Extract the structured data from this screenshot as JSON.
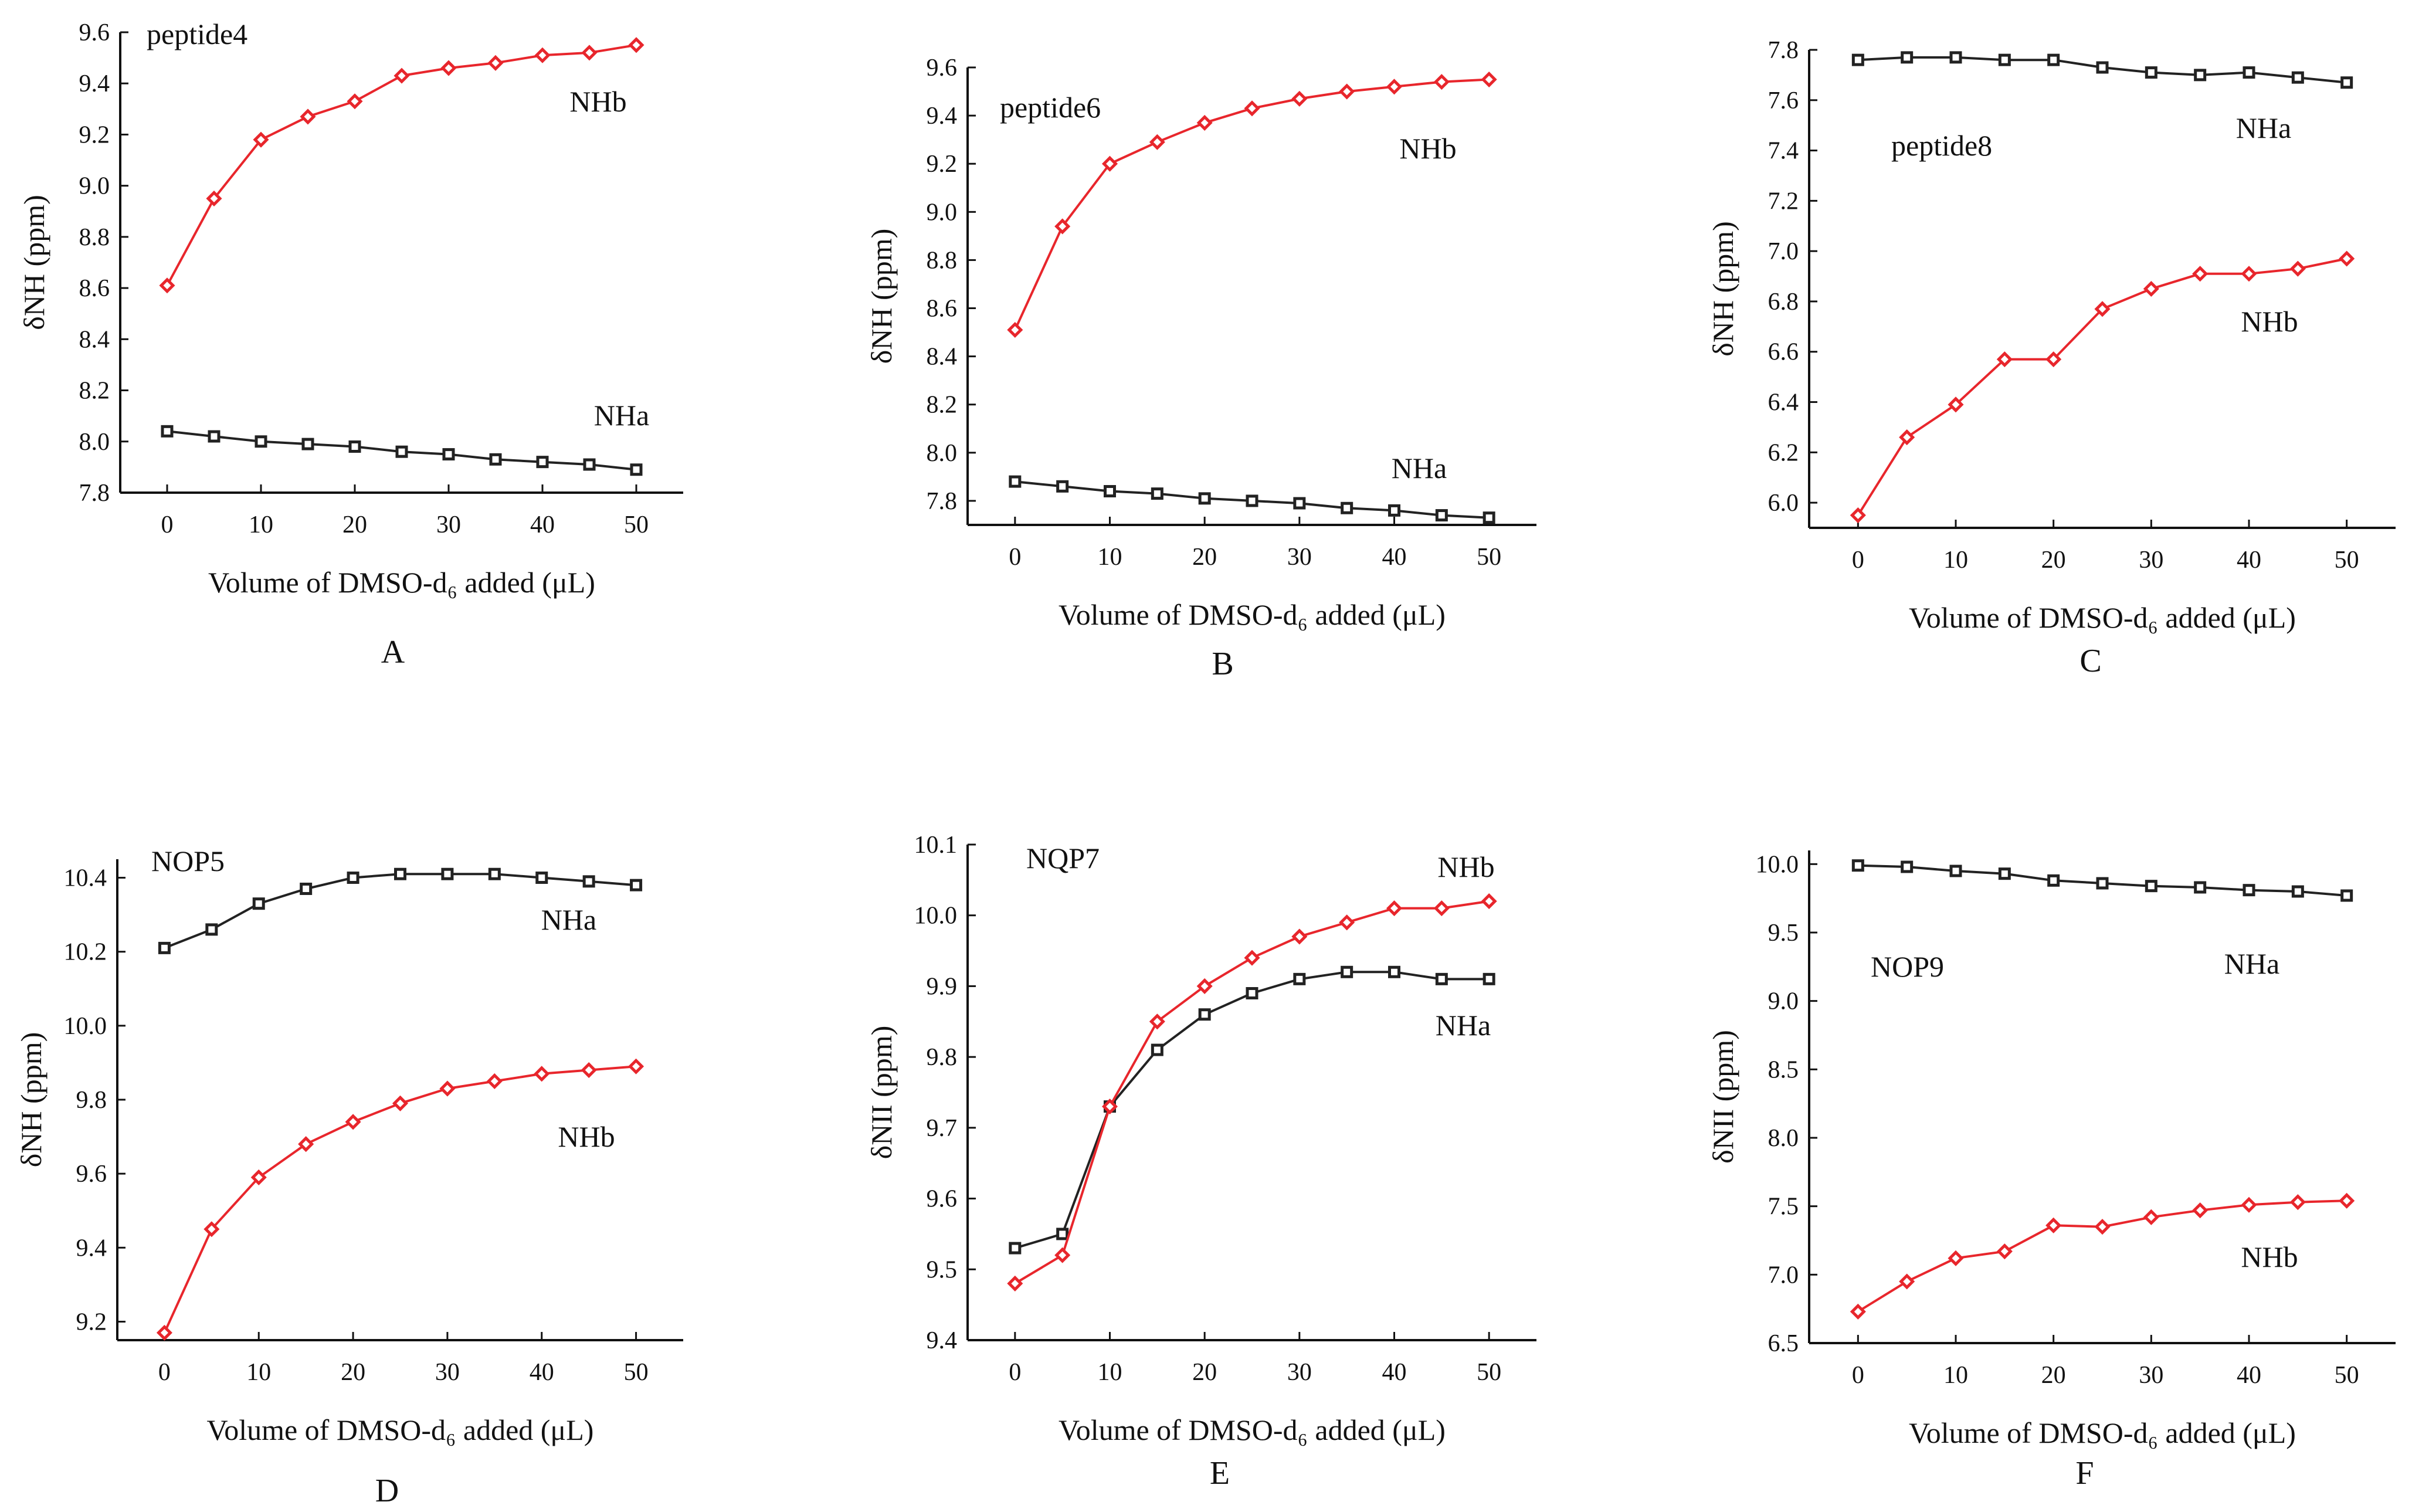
{
  "figure": {
    "colors": {
      "nha": "#222222",
      "nhb": "#e8262c",
      "axis": "#111111"
    },
    "icons": {
      "nha_marker": "square-marker-icon",
      "nhb_marker": "diamond-marker-icon"
    }
  },
  "chart_data": [
    {
      "panel": "A",
      "type": "line",
      "title": "peptide4",
      "xlabel": "Volume of DMSO-d₆ added (μL)",
      "ylabel": "δNH (ppm)",
      "xlim": [
        -5,
        55
      ],
      "ylim": [
        7.8,
        9.6
      ],
      "xticks": [
        "0",
        "10",
        "20",
        "30",
        "40",
        "50"
      ],
      "yticks": [
        "7.8",
        "8.0",
        "8.2",
        "8.4",
        "8.6",
        "8.8",
        "9.0",
        "9.2",
        "9.4",
        "9.6"
      ],
      "x": [
        0,
        5,
        10,
        15,
        20,
        25,
        30,
        35,
        40,
        45,
        50
      ],
      "series": [
        {
          "name": "NHa",
          "marker": "square",
          "values": [
            8.04,
            8.02,
            8.0,
            7.99,
            7.98,
            7.96,
            7.95,
            7.93,
            7.92,
            7.91,
            7.89
          ]
        },
        {
          "name": "NHb",
          "marker": "diamond",
          "values": [
            8.61,
            8.95,
            9.18,
            9.27,
            9.33,
            9.43,
            9.46,
            9.48,
            9.51,
            9.52,
            9.55
          ]
        }
      ]
    },
    {
      "panel": "B",
      "type": "line",
      "title": "peptide6",
      "xlabel": "Volume of DMSO-d₆ added (μL)",
      "ylabel": "δNH (ppm)",
      "xlim": [
        -5,
        55
      ],
      "ylim": [
        7.7,
        9.6
      ],
      "xticks": [
        "0",
        "10",
        "20",
        "30",
        "40",
        "50"
      ],
      "yticks": [
        "7.8",
        "8.0",
        "8.2",
        "8.4",
        "8.6",
        "8.8",
        "9.0",
        "9.2",
        "9.4",
        "9.6"
      ],
      "x": [
        0,
        5,
        10,
        15,
        20,
        25,
        30,
        35,
        40,
        45,
        50
      ],
      "series": [
        {
          "name": "NHa",
          "marker": "square",
          "values": [
            7.88,
            7.86,
            7.84,
            7.83,
            7.81,
            7.8,
            7.79,
            7.77,
            7.76,
            7.74,
            7.73
          ]
        },
        {
          "name": "NHb",
          "marker": "diamond",
          "values": [
            8.51,
            8.94,
            9.2,
            9.29,
            9.37,
            9.43,
            9.47,
            9.5,
            9.52,
            9.54,
            9.55
          ]
        }
      ]
    },
    {
      "panel": "C",
      "type": "line",
      "title": "peptide8",
      "xlabel": "Volume of DMSO-d₆ added (μL)",
      "ylabel": "δNH (ppm)",
      "xlim": [
        -5,
        55
      ],
      "ylim": [
        5.9,
        7.8
      ],
      "xticks": [
        "0",
        "10",
        "20",
        "30",
        "40",
        "50"
      ],
      "yticks": [
        "6.0",
        "6.2",
        "6.4",
        "6.6",
        "6.8",
        "7.0",
        "7.2",
        "7.4",
        "7.6",
        "7.8"
      ],
      "x": [
        0,
        5,
        10,
        15,
        20,
        25,
        30,
        35,
        40,
        45,
        50
      ],
      "series": [
        {
          "name": "NHa",
          "marker": "square",
          "values": [
            7.76,
            7.77,
            7.77,
            7.76,
            7.76,
            7.73,
            7.71,
            7.7,
            7.71,
            7.69,
            7.67
          ]
        },
        {
          "name": "NHb",
          "marker": "diamond",
          "values": [
            5.95,
            6.26,
            6.39,
            6.57,
            6.57,
            6.77,
            6.85,
            6.91,
            6.91,
            6.93,
            6.97
          ]
        }
      ]
    },
    {
      "panel": "D",
      "type": "line",
      "title": "NOP5",
      "xlabel": "Volume of DMSO-d₆ added (μL)",
      "ylabel": "δNH (ppm)",
      "xlim": [
        -5,
        55
      ],
      "ylim": [
        9.15,
        10.45
      ],
      "xticks": [
        "0",
        "10",
        "20",
        "30",
        "40",
        "50"
      ],
      "yticks": [
        "9.2",
        "9.4",
        "9.6",
        "9.8",
        "10.0",
        "10.2",
        "10.4"
      ],
      "x": [
        0,
        5,
        10,
        15,
        20,
        25,
        30,
        35,
        40,
        45,
        50
      ],
      "series": [
        {
          "name": "NHa",
          "marker": "square",
          "values": [
            10.21,
            10.26,
            10.33,
            10.37,
            10.4,
            10.41,
            10.41,
            10.41,
            10.4,
            10.39,
            10.38
          ]
        },
        {
          "name": "NHb",
          "marker": "diamond",
          "values": [
            9.17,
            9.45,
            9.59,
            9.68,
            9.74,
            9.79,
            9.83,
            9.85,
            9.87,
            9.88,
            9.89
          ]
        }
      ]
    },
    {
      "panel": "E",
      "type": "line",
      "title": "NQP7",
      "xlabel": "Volume of DMSO-d₆ added (μL)",
      "ylabel": "δNII (ppm)",
      "xlim": [
        -5,
        55
      ],
      "ylim": [
        9.4,
        10.1
      ],
      "xticks": [
        "0",
        "10",
        "20",
        "30",
        "40",
        "50"
      ],
      "yticks": [
        "9.4",
        "9.5",
        "9.6",
        "9.7",
        "9.8",
        "9.9",
        "10.0",
        "10.1"
      ],
      "x": [
        0,
        5,
        10,
        15,
        20,
        25,
        30,
        35,
        40,
        45,
        50
      ],
      "series": [
        {
          "name": "NHa",
          "marker": "square",
          "values": [
            9.53,
            9.55,
            9.73,
            9.81,
            9.86,
            9.89,
            9.91,
            9.92,
            9.92,
            9.91,
            9.91
          ]
        },
        {
          "name": "NHb",
          "marker": "diamond",
          "values": [
            9.48,
            9.52,
            9.73,
            9.85,
            9.9,
            9.94,
            9.97,
            9.99,
            10.01,
            10.01,
            10.02
          ]
        }
      ]
    },
    {
      "panel": "F",
      "type": "line",
      "title": "NOP9",
      "xlabel": "Volume of DMSO-d₆ added (μL)",
      "ylabel": "δNII (ppm)",
      "xlim": [
        -5,
        55
      ],
      "ylim": [
        6.5,
        10.1
      ],
      "xticks": [
        "0",
        "10",
        "20",
        "30",
        "40",
        "50"
      ],
      "yticks": [
        "6.5",
        "7.0",
        "7.5",
        "8.0",
        "8.5",
        "9.0",
        "9.5",
        "10.0"
      ],
      "x": [
        0,
        5,
        10,
        15,
        20,
        25,
        30,
        35,
        40,
        45,
        50
      ],
      "series": [
        {
          "name": "NHa",
          "marker": "square",
          "values": [
            9.99,
            9.98,
            9.95,
            9.93,
            9.88,
            9.86,
            9.84,
            9.83,
            9.81,
            9.8,
            9.77
          ]
        },
        {
          "name": "NHb",
          "marker": "diamond",
          "values": [
            6.73,
            6.95,
            7.12,
            7.17,
            7.36,
            7.35,
            7.42,
            7.47,
            7.51,
            7.53,
            7.54
          ]
        }
      ]
    }
  ]
}
